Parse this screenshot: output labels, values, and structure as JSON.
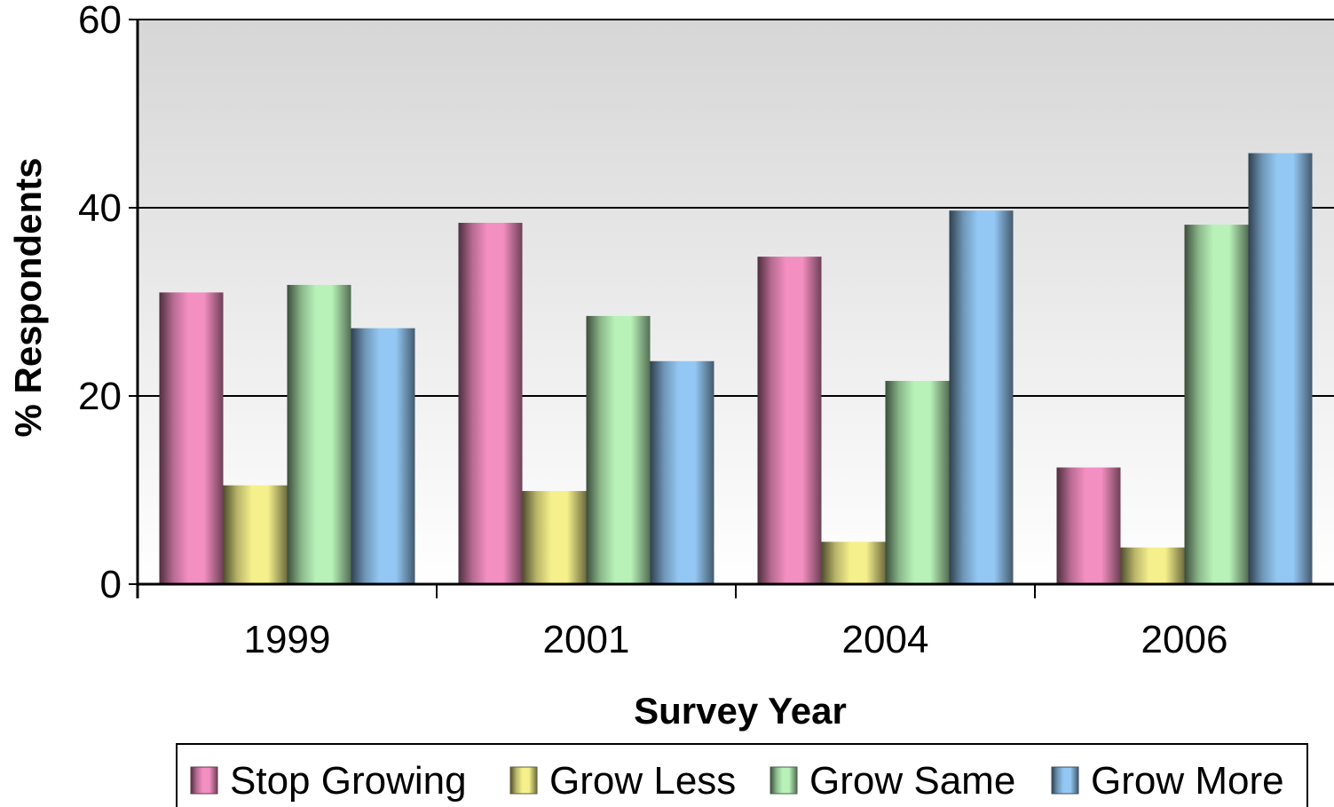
{
  "chart_data": {
    "type": "bar",
    "title": "",
    "xlabel": "Survey Year",
    "ylabel": "% Respondents",
    "categories": [
      "1999",
      "2001",
      "2004",
      "2006"
    ],
    "ylim": [
      0,
      60
    ],
    "yticks": [
      0,
      20,
      40,
      60
    ],
    "grid": "horizontal",
    "legend_position": "bottom",
    "series": [
      {
        "name": "Stop Growing",
        "color": "#f48fc2",
        "values": [
          31,
          38.4,
          34.8,
          12.4
        ]
      },
      {
        "name": "Grow Less",
        "color": "#f5f08c",
        "values": [
          10.5,
          9.9,
          4.5,
          3.9
        ]
      },
      {
        "name": "Grow Same",
        "color": "#b8f2b8",
        "values": [
          31.8,
          28.5,
          21.6,
          38.2
        ]
      },
      {
        "name": "Grow More",
        "color": "#94c8f4",
        "values": [
          27.2,
          23.7,
          39.7,
          45.8
        ]
      }
    ]
  }
}
